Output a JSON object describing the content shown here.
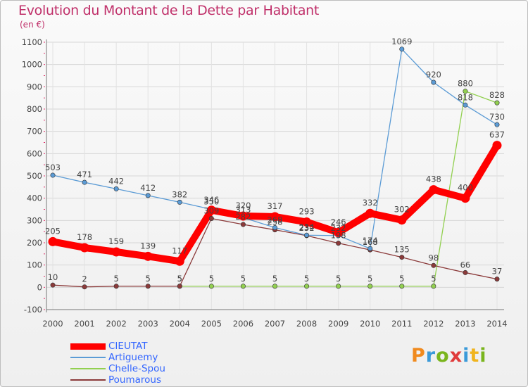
{
  "chart_data": {
    "type": "line",
    "title": "Evolution du Montant de la Dette par Habitant",
    "unit_label": "(en €)",
    "x": [
      "2000",
      "2001",
      "2002",
      "2003",
      "2004",
      "2005",
      "2006",
      "2007",
      "2008",
      "2009",
      "2010",
      "2011",
      "2012",
      "2013",
      "2014"
    ],
    "ylim": [
      -100,
      1100
    ],
    "yticks": [
      -100,
      0,
      100,
      200,
      300,
      400,
      500,
      600,
      700,
      800,
      900,
      1000,
      1100
    ],
    "grid": true,
    "legend_position": "bottom-left",
    "series": [
      {
        "name": "CIEUTAT",
        "color": "#ff0000",
        "values": [
          205,
          178,
          159,
          139,
          117,
          346,
          320,
          317,
          293,
          246,
          332,
          302,
          438,
          400,
          637
        ],
        "labels": [
          "205",
          "178",
          "159",
          "139",
          "117",
          "346",
          "320",
          "317",
          "293",
          "246",
          "332",
          "302",
          "438",
          "400",
          "637"
        ]
      },
      {
        "name": "Artiguemy",
        "color": "#5b9bd5",
        "values": [
          503,
          471,
          442,
          412,
          382,
          350,
          313,
          268,
          234,
          232,
          174,
          1069,
          920,
          818,
          730
        ],
        "labels": [
          "503",
          "471",
          "442",
          "412",
          "382",
          "350",
          "313",
          "268",
          "234",
          "232",
          "174",
          "1069",
          "920",
          "818",
          "730"
        ]
      },
      {
        "name": "Chelle-Spou",
        "color": "#92d050",
        "values": [
          null,
          null,
          null,
          null,
          5,
          5,
          5,
          5,
          5,
          5,
          5,
          5,
          5,
          880,
          828
        ],
        "labels": [
          "",
          "",
          "",
          "",
          "5",
          "5",
          "5",
          "5",
          "5",
          "5",
          "5",
          "5",
          "5",
          "880",
          "828"
        ]
      },
      {
        "name": "Poumarous",
        "color": "#8b3a3a",
        "values": [
          10,
          2,
          5,
          5,
          5,
          309,
          282,
          258,
          232,
          198,
          168,
          135,
          98,
          66,
          37
        ],
        "labels": [
          "10",
          "2",
          "5",
          "5",
          "5",
          "309",
          "282",
          "258",
          "232",
          "198",
          "168",
          "135",
          "98",
          "66",
          "37"
        ]
      }
    ]
  },
  "logo": {
    "letters": [
      "P",
      "r",
      "o",
      "x",
      "i",
      "t",
      "i"
    ]
  }
}
